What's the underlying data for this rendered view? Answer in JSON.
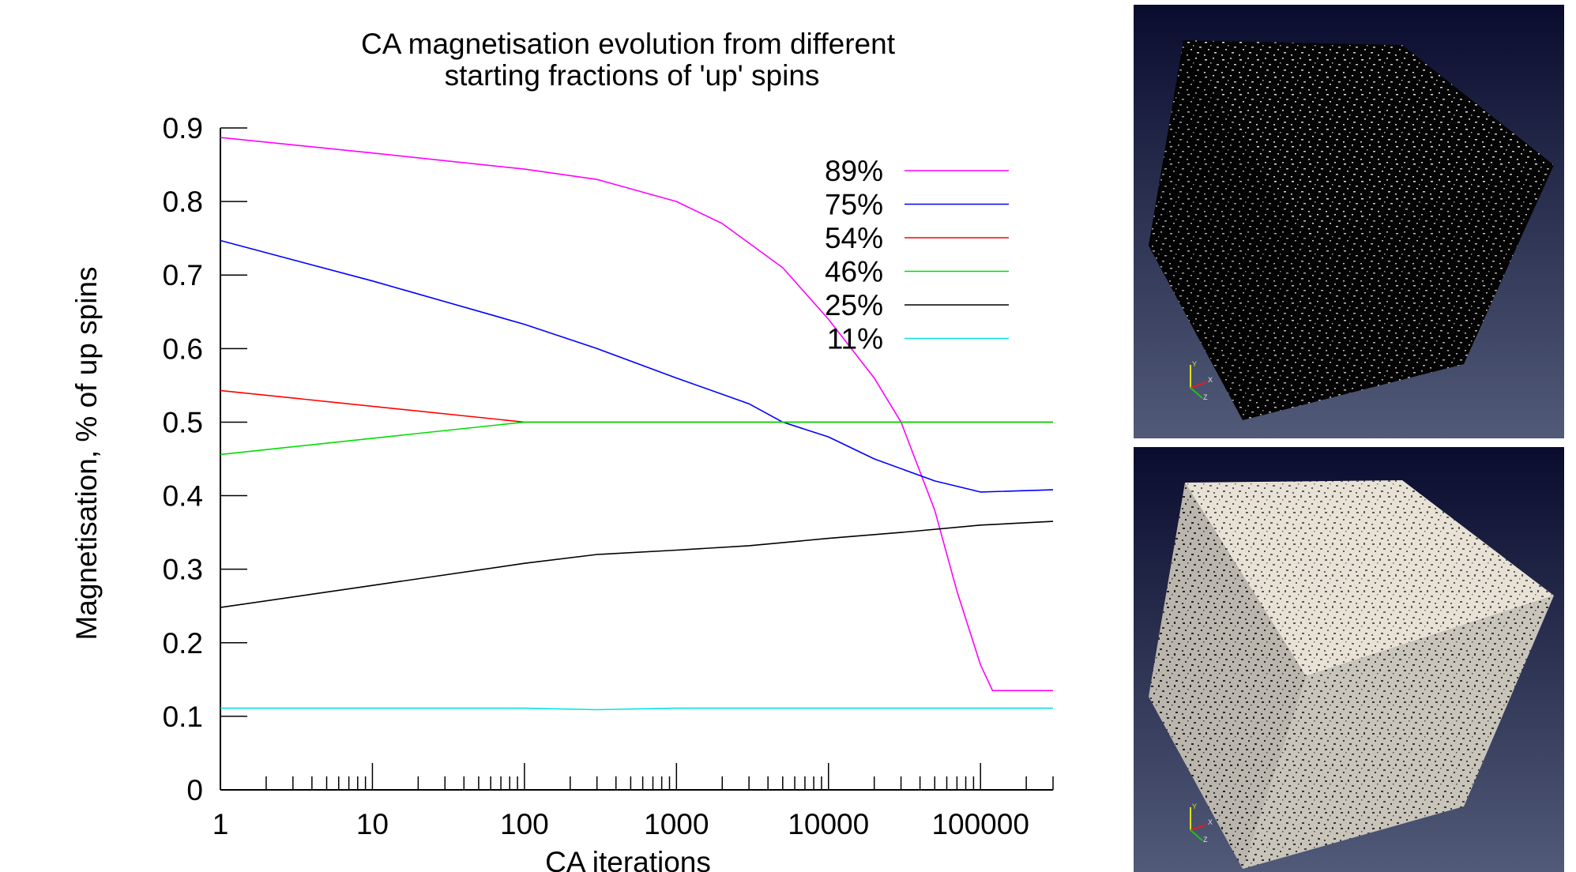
{
  "chart_data": {
    "type": "line",
    "title": "CA magnetisation evolution from different",
    "title_line2": "starting fractions of 'up' spins",
    "xlabel": "CA iterations",
    "ylabel": "Magnetisation, % of up spins",
    "x_scale": "log",
    "xlim": [
      1,
      300000
    ],
    "ylim": [
      0,
      0.9
    ],
    "x_ticks": [
      "1",
      "10",
      "100",
      "1000",
      "10000",
      "100000"
    ],
    "y_ticks": [
      "0",
      "0.1",
      "0.2",
      "0.3",
      "0.4",
      "0.5",
      "0.6",
      "0.7",
      "0.8",
      "0.9"
    ],
    "legend_position": "top-right",
    "grid": false,
    "series": [
      {
        "name": "89%",
        "color": "#ff00ff",
        "x": [
          1,
          10,
          100,
          300,
          1000,
          2000,
          5000,
          10000,
          20000,
          30000,
          50000,
          70000,
          100000,
          120000,
          300000
        ],
        "y": [
          0.887,
          0.866,
          0.844,
          0.83,
          0.8,
          0.77,
          0.71,
          0.64,
          0.56,
          0.5,
          0.38,
          0.27,
          0.17,
          0.135,
          0.135
        ]
      },
      {
        "name": "75%",
        "color": "#0000ff",
        "x": [
          1,
          10,
          100,
          300,
          1000,
          3000,
          5000,
          10000,
          20000,
          50000,
          100000,
          300000
        ],
        "y": [
          0.747,
          0.692,
          0.633,
          0.6,
          0.56,
          0.525,
          0.5,
          0.48,
          0.45,
          0.42,
          0.405,
          0.408
        ]
      },
      {
        "name": "54%",
        "color": "#ff0000",
        "x": [
          1,
          100,
          300000
        ],
        "y": [
          0.543,
          0.5,
          0.5
        ]
      },
      {
        "name": "46%",
        "color": "#00dd00",
        "x": [
          1,
          100,
          300000
        ],
        "y": [
          0.456,
          0.5,
          0.5
        ]
      },
      {
        "name": "25%",
        "color": "#000000",
        "x": [
          1,
          10,
          100,
          300,
          1000,
          3000,
          10000,
          30000,
          100000,
          300000
        ],
        "y": [
          0.248,
          0.278,
          0.308,
          0.32,
          0.326,
          0.332,
          0.342,
          0.35,
          0.36,
          0.365
        ]
      },
      {
        "name": "11%",
        "color": "#00e5e5",
        "x": [
          1,
          100,
          300,
          1000,
          300000
        ],
        "y": [
          0.111,
          0.111,
          0.109,
          0.111,
          0.111
        ]
      }
    ]
  },
  "panels": {
    "top_cube": {
      "axis_labels": [
        "Y",
        "X",
        "Z"
      ]
    },
    "bottom_cube": {
      "axis_labels": [
        "Y",
        "X",
        "Z"
      ]
    }
  }
}
